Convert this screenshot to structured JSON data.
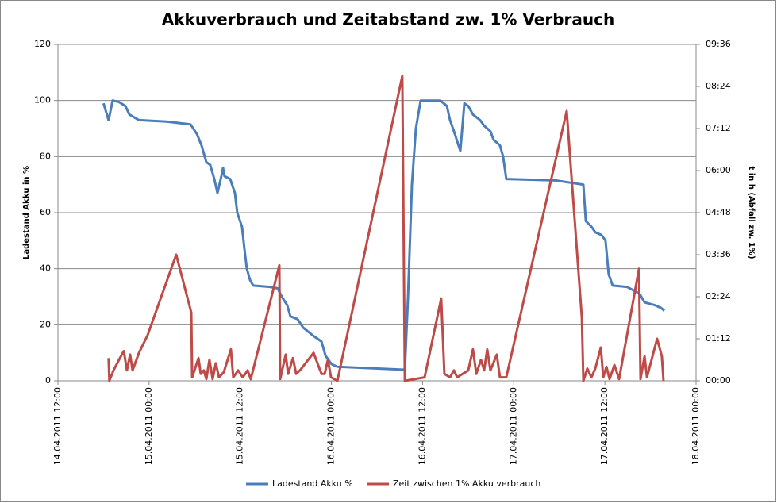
{
  "chart_data": {
    "type": "line",
    "title": "Akkuverbrauch und Zeitabstand zw. 1% Verbrauch",
    "ylabel": "Ladestand Akku in %",
    "y2label": "t in h (Abfall zw. 1%)",
    "xlim": [
      "14.04.2011 12:00",
      "18.04.2011 00:00"
    ],
    "xticks": [
      "14.04.2011 12:00",
      "15.04.2011 00:00",
      "15.04.2011 12:00",
      "16.04.2011 00:00",
      "16.04.2011 12:00",
      "17.04.2011 00:00",
      "17.04.2011 12:00",
      "18.04.2011 00:00"
    ],
    "ylim": [
      0,
      120
    ],
    "yticks": [
      0,
      20,
      40,
      60,
      80,
      100,
      120
    ],
    "y2lim": [
      0,
      9.6
    ],
    "y2ticks": [
      {
        "value": 0,
        "label": "00:00"
      },
      {
        "value": 1.2,
        "label": "01:12"
      },
      {
        "value": 2.4,
        "label": "02:24"
      },
      {
        "value": 3.6,
        "label": "03:36"
      },
      {
        "value": 4.8,
        "label": "04:48"
      },
      {
        "value": 6,
        "label": "06:00"
      },
      {
        "value": 7.2,
        "label": "07:12"
      },
      {
        "value": 8.4,
        "label": "08:24"
      },
      {
        "value": 9.6,
        "label": "09:36"
      }
    ],
    "grid": true,
    "legend": "bottom",
    "series": [
      {
        "name": "Ladestand Akku %",
        "color": "#4a7ebb",
        "axis": "y",
        "x": [
          "14.04.2011 18:00",
          "14.04.2011 18:40",
          "14.04.2011 19:12",
          "14.04.2011 20:00",
          "14.04.2011 20:53",
          "14.04.2011 21:24",
          "14.04.2011 22:40",
          "15.04.2011 02:18",
          "15.04.2011 05:27",
          "15.04.2011 06:18",
          "15.04.2011 06:54",
          "15.04.2011 07:32",
          "15.04.2011 08:03",
          "15.04.2011 08:35",
          "15.04.2011 09:00",
          "15.04.2011 09:31",
          "15.04.2011 09:44",
          "15.04.2011 09:56",
          "15.04.2011 10:40",
          "15.04.2011 11:18",
          "15.04.2011 11:36",
          "15.04.2011 12:14",
          "15.04.2011 12:33",
          "15.04.2011 12:52",
          "15.04.2011 13:17",
          "15.04.2011 13:42",
          "15.04.2011 15:54",
          "15.04.2011 16:56",
          "15.04.2011 17:28",
          "15.04.2011 18:11",
          "15.04.2011 18:36",
          "15.04.2011 19:33",
          "15.04.2011 20:17",
          "15.04.2011 21:39",
          "15.04.2011 22:42",
          "15.04.2011 23:13",
          "16.04.2011 00:00",
          "16.04.2011 00:47",
          "16.04.2011 09:20",
          "16.04.2011 09:40",
          "16.04.2011 10:05",
          "16.04.2011 10:36",
          "16.04.2011 11:07",
          "16.04.2011 11:45",
          "16.04.2011 14:21",
          "16.04.2011 15:12",
          "16.04.2011 15:37",
          "16.04.2011 16:08",
          "16.04.2011 16:58",
          "16.04.2011 17:30",
          "16.04.2011 18:01",
          "16.04.2011 18:38",
          "16.04.2011 19:34",
          "16.04.2011 20:06",
          "16.04.2011 20:56",
          "16.04.2011 21:21",
          "16.04.2011 22:11",
          "16.04.2011 22:36",
          "16.04.2011 23:01",
          "17.04.2011 05:30",
          "17.04.2011 09:10",
          "17.04.2011 09:29",
          "17.04.2011 10:13",
          "17.04.2011 10:44",
          "17.04.2011 11:34",
          "17.04.2011 12:05",
          "17.04.2011 12:30",
          "17.04.2011 13:01",
          "17.04.2011 14:54",
          "17.04.2011 15:57",
          "17.04.2011 16:35",
          "17.04.2011 17:13",
          "17.04.2011 18:34",
          "17.04.2011 19:24",
          "17.04.2011 19:49"
        ],
        "values": [
          99,
          93,
          100,
          99.5,
          98,
          95,
          93,
          92.5,
          91.5,
          88,
          84,
          78,
          77,
          72,
          67,
          73,
          76,
          73,
          72,
          67,
          60,
          55,
          47,
          40,
          36,
          34,
          33.5,
          33,
          30,
          27,
          23,
          22,
          19,
          16,
          14,
          9,
          6,
          5,
          4,
          4,
          30,
          70,
          90,
          100,
          100,
          98,
          93,
          89,
          82,
          99,
          98,
          95,
          93,
          91,
          89,
          86,
          84,
          80,
          72,
          71.5,
          70,
          57,
          55,
          53,
          52,
          50,
          38,
          34,
          33.5,
          32,
          31,
          28,
          27,
          26,
          25
        ]
      },
      {
        "name": "Zeit zwischen 1% Akku verbrauch",
        "color": "#be4b48",
        "axis": "y2",
        "x": [
          "14.04.2011 18:40",
          "14.04.2011 18:46",
          "14.04.2011 19:19",
          "14.04.2011 20:02",
          "14.04.2011 20:40",
          "14.04.2011 21:05",
          "14.04.2011 21:30",
          "14.04.2011 21:49",
          "14.04.2011 22:40",
          "14.04.2011 23:48",
          "15.04.2011 03:34",
          "15.04.2011 05:33",
          "15.04.2011 05:40",
          "15.04.2011 06:30",
          "15.04.2011 06:48",
          "15.04.2011 07:13",
          "15.04.2011 07:32",
          "15.04.2011 07:57",
          "15.04.2011 08:22",
          "15.04.2011 08:47",
          "15.04.2011 09:12",
          "15.04.2011 09:50",
          "15.04.2011 10:46",
          "15.04.2011 11:05",
          "15.04.2011 11:43",
          "15.04.2011 12:20",
          "15.04.2011 12:58",
          "15.04.2011 13:23",
          "15.04.2011 13:48",
          "15.04.2011 17:09",
          "15.04.2011 17:15",
          "15.04.2011 17:59",
          "15.04.2011 18:18",
          "15.04.2011 18:56",
          "15.04.2011 19:21",
          "15.04.2011 19:52",
          "15.04.2011 21:39",
          "15.04.2011 22:10",
          "15.04.2011 22:42",
          "15.04.2011 23:07",
          "15.04.2011 23:32",
          "15.04.2011 23:57",
          "16.04.2011 00:47",
          "16.04.2011 09:20",
          "16.04.2011 09:40",
          "16.04.2011 12:16",
          "16.04.2011 14:27",
          "16.04.2011 14:52",
          "16.04.2011 15:37",
          "16.04.2011 16:08",
          "16.04.2011 16:33",
          "16.04.2011 17:17",
          "16.04.2011 18:01",
          "16.04.2011 18:38",
          "16.04.2011 19:04",
          "16.04.2011 19:41",
          "16.04.2011 20:06",
          "16.04.2011 20:31",
          "16.04.2011 20:56",
          "16.04.2011 21:46",
          "16.04.2011 22:11",
          "16.04.2011 23:01",
          "17.04.2011 06:58",
          "17.04.2011 08:58",
          "17.04.2011 09:10",
          "17.04.2011 09:41",
          "17.04.2011 10:13",
          "17.04.2011 10:44",
          "17.04.2011 11:28",
          "17.04.2011 11:47",
          "17.04.2011 12:12",
          "17.04.2011 12:37",
          "17.04.2011 13:15",
          "17.04.2011 13:52",
          "17.04.2011 16:29",
          "17.04.2011 16:41",
          "17.04.2011 17:13",
          "17.04.2011 17:32",
          "17.04.2011 18:52",
          "17.04.2011 19:30",
          "17.04.2011 19:43"
        ],
        "values": [
          0.65,
          0,
          0.3,
          0.6,
          0.85,
          0.3,
          0.75,
          0.3,
          0.8,
          1.3,
          3.6,
          1.95,
          0.1,
          0.65,
          0.2,
          0.3,
          0.05,
          0.6,
          0.05,
          0.5,
          0.1,
          0.25,
          0.9,
          0.1,
          0.3,
          0.1,
          0.3,
          0.05,
          0.4,
          3.3,
          0.05,
          0.75,
          0.2,
          0.65,
          0.2,
          0.3,
          0.8,
          0.5,
          0.2,
          0.2,
          0.6,
          0.1,
          0,
          8.7,
          0,
          0.1,
          2.35,
          0.2,
          0.1,
          0.3,
          0.1,
          0.2,
          0.3,
          0.9,
          0.2,
          0.6,
          0.3,
          0.9,
          0.3,
          0.75,
          0.1,
          0.1,
          7.7,
          1.8,
          0,
          0.35,
          0.1,
          0.35,
          0.95,
          0.1,
          0.4,
          0.05,
          0.45,
          0.05,
          3.2,
          0.05,
          0.7,
          0.1,
          1.2,
          0.7,
          0
        ]
      }
    ]
  }
}
